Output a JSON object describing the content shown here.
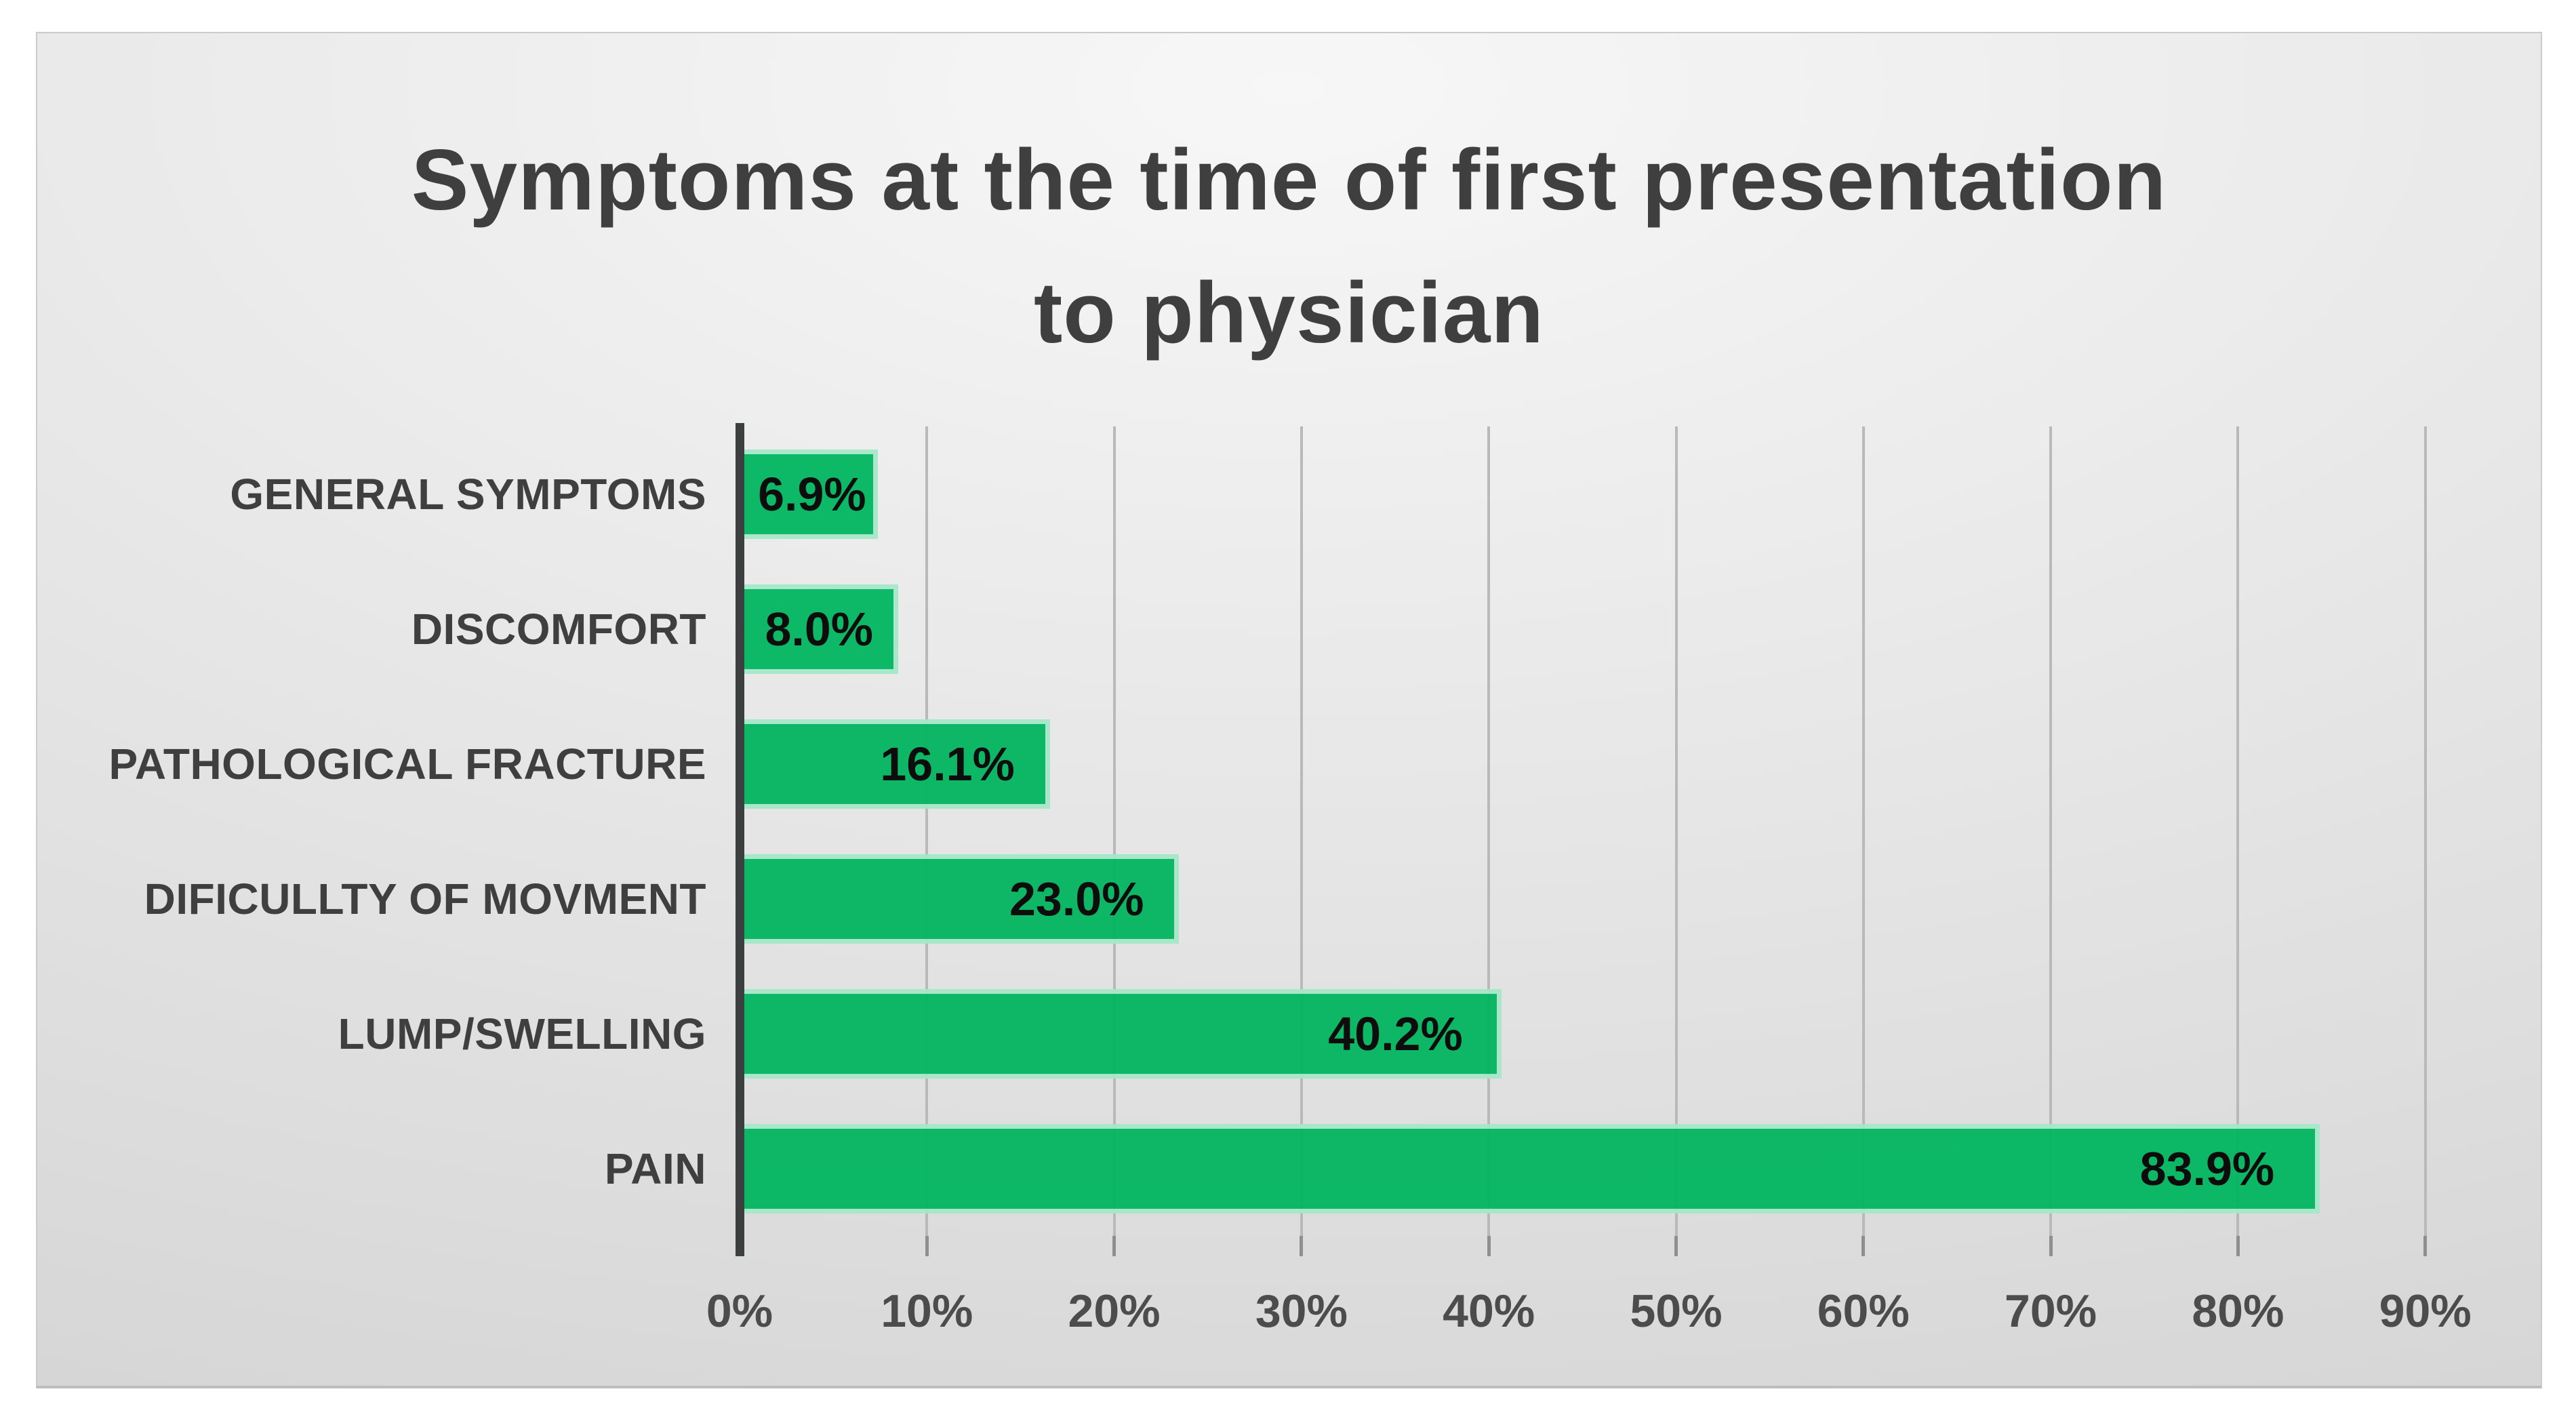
{
  "chart_data": {
    "type": "bar",
    "orientation": "horizontal",
    "title_line1": "Symptoms at the time of first presentation",
    "title_line2": "to physician",
    "categories": [
      "GENERAL SYMPTOMS",
      "DISCOMFORT",
      "PATHOLOGICAL FRACTURE",
      "DIFICULLTY OF MOVMENT",
      "LUMP/SWELLING",
      "PAIN"
    ],
    "values": [
      6.9,
      8.0,
      16.1,
      23.0,
      40.2,
      83.9
    ],
    "value_labels": [
      "6.9%",
      "8.0%",
      "16.1%",
      "23.0%",
      "40.2%",
      "83.9%"
    ],
    "x_tick_labels": [
      "0%",
      "10%",
      "20%",
      "30%",
      "40%",
      "50%",
      "60%",
      "70%",
      "80%",
      "90%"
    ],
    "x_tick_values": [
      0,
      10,
      20,
      30,
      40,
      50,
      60,
      70,
      80,
      90
    ],
    "xlim": [
      0,
      90
    ],
    "xlabel": "",
    "ylabel": "",
    "grid": "vertical-major",
    "legend": "none",
    "value_label_position": "inside-end"
  },
  "colors": {
    "bar_fill": "#00B55E",
    "bar_edge": "#A5E8C9",
    "axis_line": "#3C3F40",
    "gridline": "#B9B9B9",
    "tick": "#8F8F8F",
    "title_text": "#3F3F3F",
    "category_text": "#3F3F3F",
    "value_text": "#000000",
    "axis_label_text": "#4C4C4C",
    "page_background": "#FFFFFF",
    "panel_background": "#E3E3E3"
  }
}
